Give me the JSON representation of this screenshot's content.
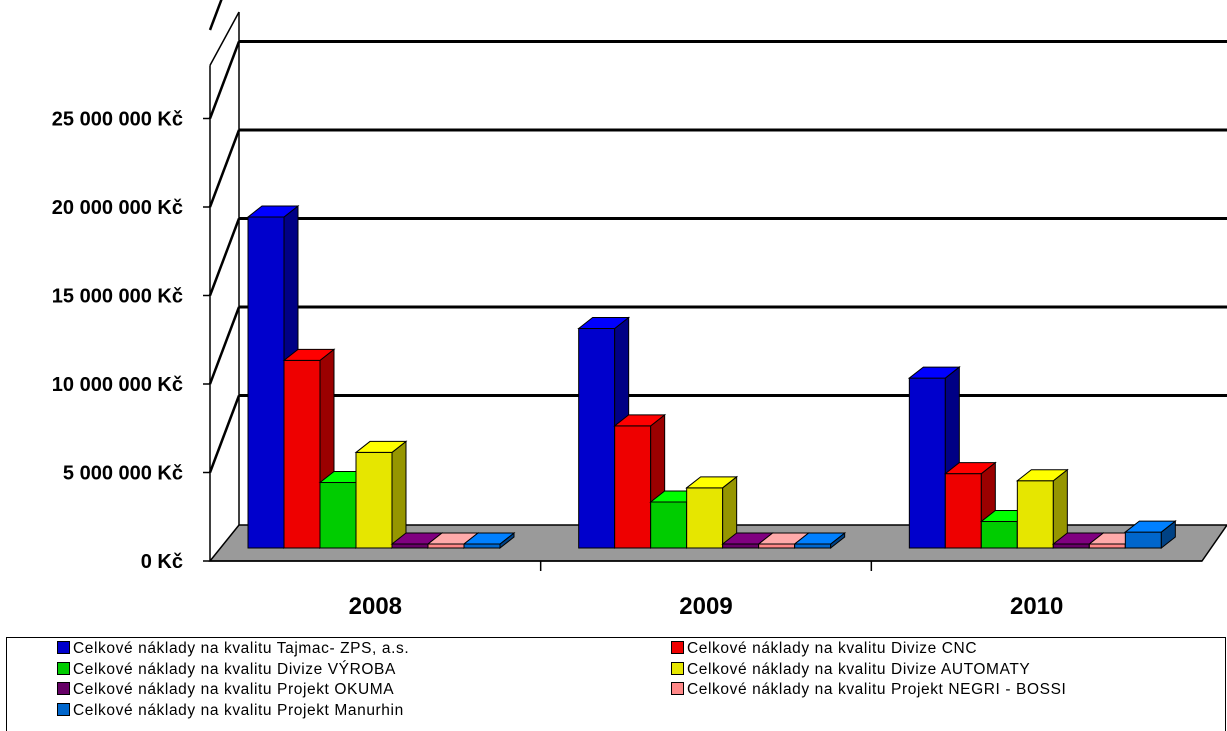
{
  "chart_data": {
    "type": "bar",
    "categories": [
      "2008",
      "2009",
      "2010"
    ],
    "y_ticks": [
      "0 Kč",
      "5 000 000 Kč",
      "10 000 000 Kč",
      "15 000 000 Kč",
      "20 000 000 Kč",
      "25 000 000 Kč"
    ],
    "ylim": [
      0,
      25000000
    ],
    "grid": true,
    "legend_position": "bottom",
    "series": [
      {
        "name": "Celkové náklady na kvalitu Tajmac- ZPS, a.s.",
        "color": "#0000CC",
        "values": [
          18700000,
          12400000,
          9600000
        ]
      },
      {
        "name": "Celkové náklady na kvalitu Divize CNC",
        "color": "#EE0000",
        "values": [
          10600000,
          6900000,
          4200000
        ]
      },
      {
        "name": "Celkové náklady na kvalitu Divize VÝROBA",
        "color": "#00CC00",
        "values": [
          3700000,
          2600000,
          1500000
        ]
      },
      {
        "name": "Celkové náklady na kvalitu Divize  AUTOMATY",
        "color": "#E6E600",
        "values": [
          5400000,
          3400000,
          3800000
        ]
      },
      {
        "name": "Celkové náklady na kvalitu Projekt OKUMA",
        "color": "#660066",
        "values": [
          200000,
          100000,
          50000
        ]
      },
      {
        "name": "Celkové náklady na kvalitu Projekt NEGRI - BOSSI",
        "color": "#FF8888",
        "values": [
          100000,
          200000,
          100000
        ]
      },
      {
        "name": "Celkové náklady na kvalitu Projekt Manurhin",
        "color": "#0066CC",
        "values": [
          100000,
          150000,
          900000
        ]
      }
    ]
  }
}
